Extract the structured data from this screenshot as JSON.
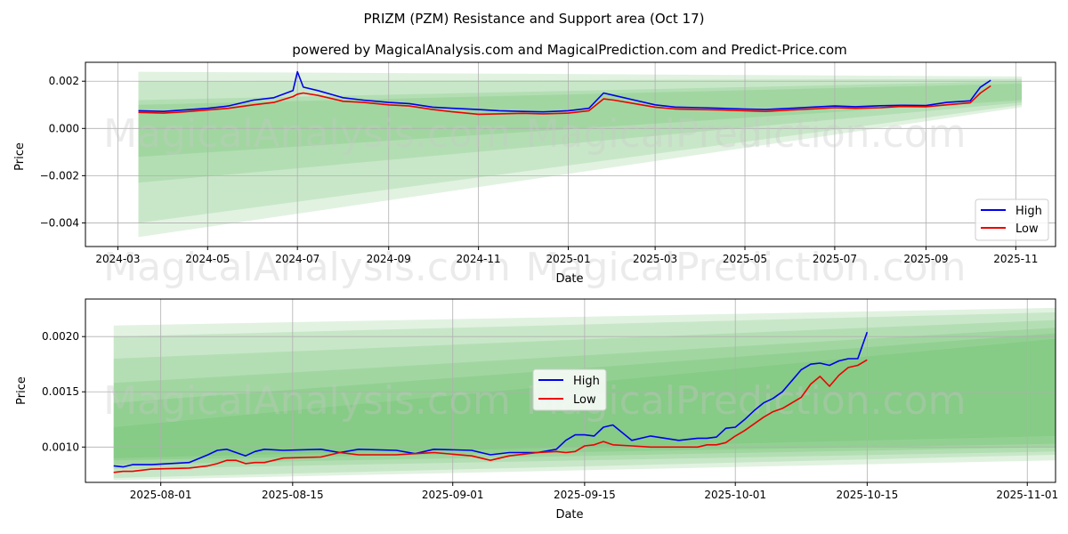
{
  "title": "PRIZM (PZM) Resistance and Support area (Oct 17)",
  "subtitle": "powered by MagicalAnalysis.com and MagicalPrediction.com and Predict-Price.com",
  "watermarks": [
    "MagicalAnalysis.com",
    "MagicalPrediction.com"
  ],
  "colors": {
    "high": "#0000ee",
    "low": "#ee0000",
    "band": "#4caf50",
    "grid": "#b0b0b0"
  },
  "legend": {
    "high": "High",
    "low": "Low"
  },
  "chart_data": [
    {
      "type": "line",
      "panel": "top",
      "xlabel": "Date",
      "ylabel": "Price",
      "xlim": [
        "2024-02-08",
        "2025-11-28"
      ],
      "ylim": [
        -0.005,
        0.0028
      ],
      "xticks": [
        {
          "date": "2024-03-01",
          "label": "2024-03"
        },
        {
          "date": "2024-05-01",
          "label": "2024-05"
        },
        {
          "date": "2024-07-01",
          "label": "2024-07"
        },
        {
          "date": "2024-09-01",
          "label": "2024-09"
        },
        {
          "date": "2024-11-01",
          "label": "2024-11"
        },
        {
          "date": "2025-01-01",
          "label": "2025-01"
        },
        {
          "date": "2025-03-01",
          "label": "2025-03"
        },
        {
          "date": "2025-05-01",
          "label": "2025-05"
        },
        {
          "date": "2025-07-01",
          "label": "2025-07"
        },
        {
          "date": "2025-09-01",
          "label": "2025-09"
        },
        {
          "date": "2025-11-01",
          "label": "2025-11"
        }
      ],
      "yticks": [
        {
          "value": 0.002,
          "label": "0.002"
        },
        {
          "value": 0.0,
          "label": "0.000"
        },
        {
          "value": -0.002,
          "label": "−0.002"
        },
        {
          "value": -0.004,
          "label": "−0.004"
        }
      ],
      "legend_position": "lower-right",
      "bands": [
        {
          "x0": "2024-03-15",
          "x1": "2025-11-05",
          "y0": [
            0.0024,
            -0.0046
          ],
          "y1": [
            0.0022,
            0.0009
          ]
        },
        {
          "x0": "2024-03-15",
          "x1": "2025-11-05",
          "y0": [
            0.002,
            -0.004
          ],
          "y1": [
            0.0021,
            0.001
          ]
        },
        {
          "x0": "2024-03-15",
          "x1": "2025-11-05",
          "y0": [
            0.0012,
            -0.0023
          ],
          "y1": [
            0.002,
            0.0011
          ]
        },
        {
          "x0": "2024-03-15",
          "x1": "2025-11-05",
          "y0": [
            0.001,
            -0.0012
          ],
          "y1": [
            0.0019,
            0.0012
          ]
        }
      ],
      "series": [
        {
          "name": "High",
          "x": [
            "2024-03-15",
            "2024-04-01",
            "2024-04-15",
            "2024-05-01",
            "2024-05-15",
            "2024-06-01",
            "2024-06-15",
            "2024-06-28",
            "2024-07-01",
            "2024-07-05",
            "2024-07-15",
            "2024-08-01",
            "2024-08-15",
            "2024-09-01",
            "2024-09-15",
            "2024-10-01",
            "2024-10-15",
            "2024-11-01",
            "2024-11-15",
            "2024-12-01",
            "2024-12-15",
            "2025-01-01",
            "2025-01-15",
            "2025-01-25",
            "2025-02-01",
            "2025-02-15",
            "2025-03-01",
            "2025-03-15",
            "2025-04-01",
            "2025-04-15",
            "2025-05-01",
            "2025-05-15",
            "2025-06-01",
            "2025-06-15",
            "2025-07-01",
            "2025-07-15",
            "2025-08-01",
            "2025-08-15",
            "2025-09-01",
            "2025-09-15",
            "2025-10-01",
            "2025-10-08",
            "2025-10-15"
          ],
          "values": [
            0.00075,
            0.00072,
            0.00078,
            0.00085,
            0.00095,
            0.0012,
            0.0013,
            0.0016,
            0.0024,
            0.00175,
            0.0016,
            0.0013,
            0.0012,
            0.0011,
            0.00105,
            0.0009,
            0.00085,
            0.0008,
            0.00075,
            0.00072,
            0.0007,
            0.00075,
            0.00085,
            0.0015,
            0.0014,
            0.0012,
            0.001,
            0.0009,
            0.00088,
            0.00085,
            0.00082,
            0.0008,
            0.00085,
            0.0009,
            0.00095,
            0.00092,
            0.00096,
            0.00098,
            0.00097,
            0.0011,
            0.00117,
            0.00175,
            0.00204
          ]
        },
        {
          "name": "Low",
          "x": [
            "2024-03-15",
            "2024-04-01",
            "2024-04-15",
            "2024-05-01",
            "2024-05-15",
            "2024-06-01",
            "2024-06-15",
            "2024-06-28",
            "2024-07-01",
            "2024-07-05",
            "2024-07-15",
            "2024-08-01",
            "2024-08-15",
            "2024-09-01",
            "2024-09-15",
            "2024-10-01",
            "2024-10-15",
            "2024-11-01",
            "2024-11-15",
            "2024-12-01",
            "2024-12-15",
            "2025-01-01",
            "2025-01-15",
            "2025-01-25",
            "2025-02-01",
            "2025-02-15",
            "2025-03-01",
            "2025-03-15",
            "2025-04-01",
            "2025-04-15",
            "2025-05-01",
            "2025-05-15",
            "2025-06-01",
            "2025-06-15",
            "2025-07-01",
            "2025-07-15",
            "2025-08-01",
            "2025-08-15",
            "2025-09-01",
            "2025-09-15",
            "2025-10-01",
            "2025-10-08",
            "2025-10-15"
          ],
          "values": [
            0.00068,
            0.00065,
            0.0007,
            0.00078,
            0.00085,
            0.001,
            0.0011,
            0.00135,
            0.00145,
            0.0015,
            0.0014,
            0.00115,
            0.0011,
            0.001,
            0.00095,
            0.0008,
            0.0007,
            0.0006,
            0.00062,
            0.00064,
            0.00062,
            0.00065,
            0.00075,
            0.00125,
            0.0012,
            0.00105,
            0.0009,
            0.00082,
            0.0008,
            0.00078,
            0.00075,
            0.00072,
            0.00078,
            0.00082,
            0.00088,
            0.00085,
            0.00088,
            0.00093,
            0.00092,
            0.001,
            0.00108,
            0.0015,
            0.0018
          ]
        }
      ]
    },
    {
      "type": "line",
      "panel": "bottom",
      "xlabel": "Date",
      "ylabel": "Price",
      "xlim": [
        "2025-07-24",
        "2025-11-04"
      ],
      "ylim": [
        0.00068,
        0.00234
      ],
      "xticks": [
        {
          "date": "2025-08-01",
          "label": "2025-08-01"
        },
        {
          "date": "2025-08-15",
          "label": "2025-08-15"
        },
        {
          "date": "2025-09-01",
          "label": "2025-09-01"
        },
        {
          "date": "2025-09-15",
          "label": "2025-09-15"
        },
        {
          "date": "2025-10-01",
          "label": "2025-10-01"
        },
        {
          "date": "2025-10-15",
          "label": "2025-10-15"
        },
        {
          "date": "2025-11-01",
          "label": "2025-11-01"
        }
      ],
      "yticks": [
        {
          "value": 0.001,
          "label": "0.0010"
        },
        {
          "value": 0.0015,
          "label": "0.0015"
        },
        {
          "value": 0.002,
          "label": "0.0020"
        }
      ],
      "legend_position": "center",
      "bands": [
        {
          "x0": "2025-07-27",
          "x1": "2025-11-04",
          "y0": [
            0.0021,
            0.0007
          ],
          "y1": [
            0.00226,
            0.00088
          ]
        },
        {
          "x0": "2025-07-27",
          "x1": "2025-11-04",
          "y0": [
            0.002,
            0.00072
          ],
          "y1": [
            0.00222,
            0.00093
          ]
        },
        {
          "x0": "2025-07-27",
          "x1": "2025-11-04",
          "y0": [
            0.0018,
            0.0008
          ],
          "y1": [
            0.00215,
            0.00096
          ]
        },
        {
          "x0": "2025-07-27",
          "x1": "2025-11-04",
          "y0": [
            0.00158,
            0.00084
          ],
          "y1": [
            0.00208,
            0.001
          ]
        },
        {
          "x0": "2025-07-27",
          "x1": "2025-11-04",
          "y0": [
            0.0014,
            0.00088
          ],
          "y1": [
            0.00203,
            0.00103
          ]
        },
        {
          "x0": "2025-07-27",
          "x1": "2025-11-04",
          "y0": [
            0.00118,
            0.0009
          ],
          "y1": [
            0.00198,
            0.0011
          ]
        }
      ],
      "series": [
        {
          "name": "High",
          "x": [
            "2025-07-27",
            "2025-07-28",
            "2025-07-29",
            "2025-07-31",
            "2025-08-04",
            "2025-08-06",
            "2025-08-07",
            "2025-08-08",
            "2025-08-09",
            "2025-08-10",
            "2025-08-11",
            "2025-08-12",
            "2025-08-14",
            "2025-08-18",
            "2025-08-20",
            "2025-08-22",
            "2025-08-26",
            "2025-08-28",
            "2025-08-30",
            "2025-09-03",
            "2025-09-05",
            "2025-09-07",
            "2025-09-10",
            "2025-09-12",
            "2025-09-13",
            "2025-09-14",
            "2025-09-15",
            "2025-09-16",
            "2025-09-17",
            "2025-09-18",
            "2025-09-20",
            "2025-09-22",
            "2025-09-25",
            "2025-09-27",
            "2025-09-28",
            "2025-09-29",
            "2025-09-30",
            "2025-10-01",
            "2025-10-02",
            "2025-10-03",
            "2025-10-04",
            "2025-10-05",
            "2025-10-06",
            "2025-10-07",
            "2025-10-08",
            "2025-10-09",
            "2025-10-10",
            "2025-10-11",
            "2025-10-12",
            "2025-10-13",
            "2025-10-14",
            "2025-10-15"
          ],
          "values": [
            0.00083,
            0.00082,
            0.00084,
            0.00084,
            0.00086,
            0.00093,
            0.00097,
            0.00098,
            0.00095,
            0.00092,
            0.00096,
            0.00098,
            0.00097,
            0.00098,
            0.00095,
            0.00098,
            0.00097,
            0.00094,
            0.00098,
            0.00097,
            0.00093,
            0.00095,
            0.00095,
            0.00098,
            0.00106,
            0.00111,
            0.00111,
            0.0011,
            0.00118,
            0.0012,
            0.00106,
            0.0011,
            0.00106,
            0.00108,
            0.00108,
            0.00109,
            0.00117,
            0.00118,
            0.00125,
            0.00133,
            0.0014,
            0.00144,
            0.0015,
            0.0016,
            0.0017,
            0.00175,
            0.00176,
            0.00174,
            0.00178,
            0.0018,
            0.0018,
            0.00204
          ]
        },
        {
          "name": "Low",
          "x": [
            "2025-07-27",
            "2025-07-28",
            "2025-07-29",
            "2025-07-31",
            "2025-08-04",
            "2025-08-06",
            "2025-08-07",
            "2025-08-08",
            "2025-08-09",
            "2025-08-10",
            "2025-08-11",
            "2025-08-12",
            "2025-08-14",
            "2025-08-18",
            "2025-08-20",
            "2025-08-22",
            "2025-08-26",
            "2025-08-28",
            "2025-08-30",
            "2025-09-03",
            "2025-09-05",
            "2025-09-07",
            "2025-09-10",
            "2025-09-12",
            "2025-09-13",
            "2025-09-14",
            "2025-09-15",
            "2025-09-16",
            "2025-09-17",
            "2025-09-18",
            "2025-09-20",
            "2025-09-22",
            "2025-09-25",
            "2025-09-27",
            "2025-09-28",
            "2025-09-29",
            "2025-09-30",
            "2025-10-01",
            "2025-10-02",
            "2025-10-03",
            "2025-10-04",
            "2025-10-05",
            "2025-10-06",
            "2025-10-07",
            "2025-10-08",
            "2025-10-09",
            "2025-10-10",
            "2025-10-11",
            "2025-10-12",
            "2025-10-13",
            "2025-10-14",
            "2025-10-15"
          ],
          "values": [
            0.00077,
            0.00078,
            0.00078,
            0.0008,
            0.00081,
            0.00083,
            0.00085,
            0.00088,
            0.00088,
            0.00085,
            0.00086,
            0.00086,
            0.0009,
            0.00091,
            0.00095,
            0.00093,
            0.00093,
            0.00094,
            0.00095,
            0.00092,
            0.00088,
            0.00092,
            0.00095,
            0.00096,
            0.00095,
            0.00096,
            0.00101,
            0.00102,
            0.00105,
            0.00102,
            0.00101,
            0.001,
            0.001,
            0.001,
            0.00102,
            0.00102,
            0.00104,
            0.0011,
            0.00115,
            0.00121,
            0.00127,
            0.00132,
            0.00135,
            0.0014,
            0.00145,
            0.00157,
            0.00164,
            0.00155,
            0.00165,
            0.00172,
            0.00174,
            0.00179
          ]
        }
      ]
    }
  ]
}
